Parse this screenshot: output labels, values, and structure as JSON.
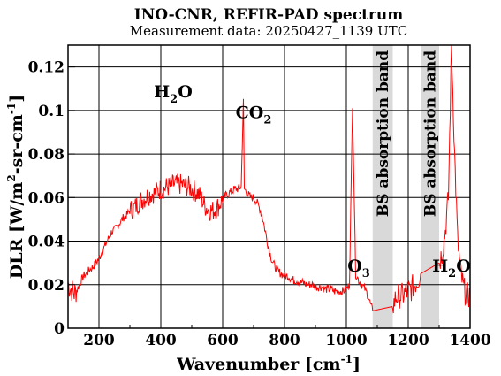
{
  "chart_data": {
    "type": "line",
    "title": "INO-CNR, REFIR-PAD spectrum",
    "subtitle": "Measurement data: 20250427_1139 UTC",
    "xlabel": {
      "base": "Wavenumber [cm",
      "sup": "-1",
      "tail": "]"
    },
    "ylabel": {
      "p1": "DLR [W/m",
      "sup1": "2",
      "p2": "-sr-cm",
      "sup2": "-1",
      "p3": "]"
    },
    "xlim": [
      100,
      1400
    ],
    "ylim": [
      0,
      0.13
    ],
    "xticks": [
      "200",
      "400",
      "600",
      "800",
      "1000",
      "1200",
      "1400"
    ],
    "yticks": [
      "0",
      "0.02",
      "0.04",
      "0.06",
      "0.08",
      "0.1",
      "0.12"
    ],
    "grid": true,
    "line_color": "#ff0000",
    "band_color": "#d9d9d9",
    "bands": [
      {
        "label": "BS absorption band",
        "x_range": [
          1085,
          1150
        ]
      },
      {
        "label": "BS absorption band",
        "x_range": [
          1240,
          1300
        ]
      }
    ],
    "annotations": [
      {
        "base": "H",
        "sub": "2",
        "tail": "O",
        "x": 440,
        "y": 0.106
      },
      {
        "base": "CO",
        "sub": "2",
        "tail": "",
        "x": 700,
        "y": 0.0965
      },
      {
        "base": "O",
        "sub": "3",
        "tail": "",
        "x": 1040,
        "y": 0.026
      },
      {
        "base": "H",
        "sub": "2",
        "tail": "O",
        "x": 1340,
        "y": 0.026
      }
    ],
    "series": [
      {
        "x": [
          100,
          110,
          120,
          130,
          140,
          150,
          160,
          170,
          180,
          190,
          200,
          210,
          220,
          230,
          240,
          250,
          260,
          270,
          280,
          290,
          300,
          310,
          320,
          330,
          340,
          350,
          360,
          370,
          380,
          390,
          400,
          410,
          420,
          430,
          440,
          450,
          460,
          470,
          480,
          490,
          500,
          510,
          520,
          530,
          540,
          550,
          560,
          570,
          580,
          590,
          600,
          610,
          620,
          630,
          640,
          650,
          660,
          667,
          670,
          680,
          690,
          700,
          710,
          720,
          730,
          740,
          750,
          760,
          770,
          780,
          790,
          800,
          810,
          820,
          830,
          840,
          850,
          860,
          870,
          880,
          890,
          900,
          910,
          920,
          930,
          940,
          950,
          960,
          970,
          980,
          990,
          1000,
          1010,
          1020,
          1030,
          1040,
          1050,
          1060,
          1070,
          1080,
          1085,
          1150,
          1160,
          1170,
          1180,
          1190,
          1200,
          1210,
          1220,
          1230,
          1240,
          1300,
          1310,
          1320,
          1330,
          1340,
          1350,
          1360,
          1370,
          1380,
          1390,
          1400
        ],
        "y": [
          0.02,
          0.018,
          0.016,
          0.018,
          0.021,
          0.024,
          0.025,
          0.027,
          0.028,
          0.03,
          0.032,
          0.035,
          0.038,
          0.041,
          0.044,
          0.045,
          0.047,
          0.049,
          0.051,
          0.052,
          0.054,
          0.055,
          0.056,
          0.058,
          0.059,
          0.06,
          0.061,
          0.062,
          0.062,
          0.063,
          0.064,
          0.064,
          0.065,
          0.065,
          0.066,
          0.066,
          0.066,
          0.066,
          0.065,
          0.065,
          0.064,
          0.063,
          0.062,
          0.06,
          0.057,
          0.055,
          0.054,
          0.054,
          0.055,
          0.057,
          0.059,
          0.061,
          0.062,
          0.063,
          0.064,
          0.064,
          0.065,
          0.104,
          0.064,
          0.062,
          0.06,
          0.06,
          0.058,
          0.055,
          0.05,
          0.043,
          0.036,
          0.031,
          0.028,
          0.026,
          0.025,
          0.024,
          0.024,
          0.023,
          0.022,
          0.022,
          0.021,
          0.021,
          0.02,
          0.02,
          0.02,
          0.019,
          0.019,
          0.019,
          0.018,
          0.018,
          0.018,
          0.017,
          0.017,
          0.017,
          0.017,
          0.018,
          0.02,
          0.103,
          0.025,
          0.022,
          0.02,
          0.018,
          0.015,
          0.01,
          0.008,
          0.01,
          0.014,
          0.015,
          0.015,
          0.016,
          0.017,
          0.018,
          0.02,
          0.022,
          0.025,
          0.03,
          0.035,
          0.045,
          0.06,
          0.13,
          0.08,
          0.04,
          0.025,
          0.018,
          0.015,
          0.015
        ]
      }
    ]
  }
}
